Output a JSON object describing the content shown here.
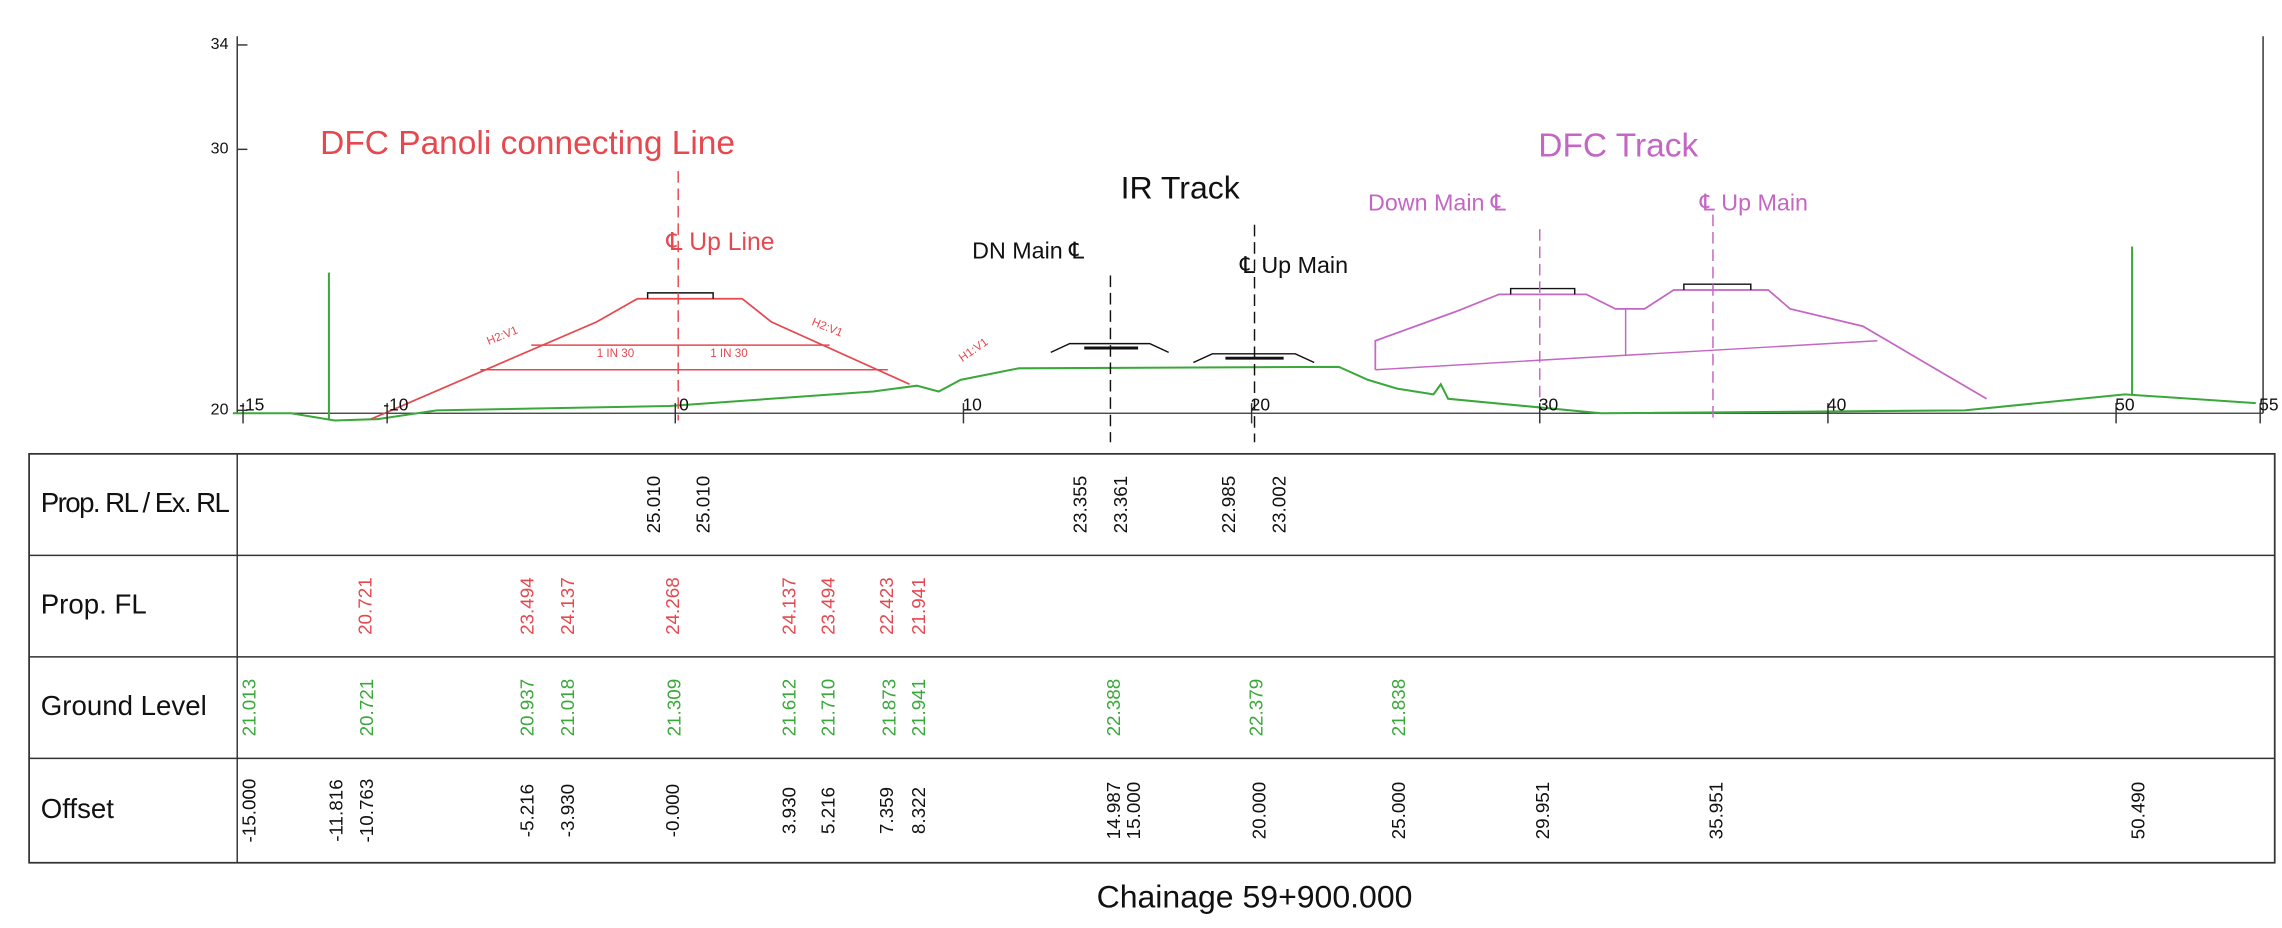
{
  "axes": {
    "yticks": [
      34,
      30,
      20
    ],
    "xticks": [
      -15,
      -10,
      0,
      10,
      20,
      30,
      40,
      50,
      55
    ]
  },
  "annotations": {
    "dfc_panoli": "DFC Panoli connecting Line",
    "up_line": "℄ Up Line",
    "ir_track": "IR Track",
    "dn_main": "DN Main ℄",
    "ir_up_main": "℄ Up Main",
    "dfc_track": "DFC Track",
    "down_main": "Down Main ℄",
    "dfc_up_main": "℄ Up Main",
    "slope_left": "H2:V1",
    "grade_left": "1 IN 30",
    "grade_right": "1 IN 30",
    "slope_right": "H2:V1",
    "slope_ir": "H1:V1"
  },
  "table": {
    "rows": [
      {
        "label": "Prop. RL / Ex. RL",
        "values": [
          "25.010",
          "25.010",
          "23.355",
          "23.361",
          "22.985",
          "23.002"
        ]
      },
      {
        "label": "Prop. FL",
        "values": [
          "20.721",
          "23.494",
          "24.137",
          "24.268",
          "24.137",
          "23.494",
          "22.423",
          "21.941"
        ]
      },
      {
        "label": "Ground Level",
        "values": [
          "21.013",
          "20.721",
          "20.937",
          "21.018",
          "21.309",
          "21.612",
          "21.710",
          "21.873",
          "21.941",
          "22.388",
          "22.379",
          "21.838"
        ]
      },
      {
        "label": "Offset",
        "values": [
          "-15.000",
          "-11.816",
          "-10.763",
          "-5.216",
          "-3.930",
          "-0.000",
          "3.930",
          "5.216",
          "7.359",
          "8.322",
          "14.987",
          "15.000",
          "20.000",
          "25.000",
          "29.951",
          "35.951",
          "50.490"
        ]
      }
    ]
  },
  "footer": "Chainage 59+900.000"
}
